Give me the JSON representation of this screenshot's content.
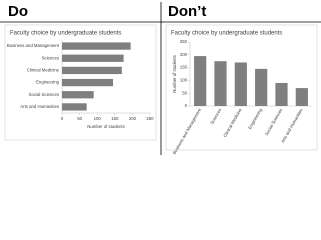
{
  "headings": {
    "do": "Do",
    "dont": "Don’t"
  },
  "chart_data": [
    {
      "type": "bar",
      "orientation": "horizontal",
      "title": "Faculty choice by undergraduate students",
      "categories": [
        "Business and Management",
        "Sciences",
        "Clinical Medicine",
        "Engineering",
        "Social Sciences",
        "Arts and Humanities"
      ],
      "values": [
        195,
        175,
        170,
        145,
        90,
        70
      ],
      "color": "#7f7f7f",
      "xlim": [
        0,
        250
      ],
      "xticks": [
        0,
        50,
        100,
        150,
        200,
        250
      ],
      "xlabel": "Number of students"
    },
    {
      "type": "bar",
      "orientation": "vertical",
      "title": "Faculty choice by undergraduate students",
      "categories": [
        "Business and Management",
        "Sciences",
        "Clinical Medicine",
        "Engineering",
        "Social Sciences",
        "Arts and Humanities"
      ],
      "values": [
        195,
        175,
        170,
        145,
        90,
        70
      ],
      "color": "#7f7f7f",
      "ylim": [
        0,
        250
      ],
      "yticks": [
        0,
        50,
        100,
        150,
        200,
        250
      ],
      "ylabel": "Number of students"
    }
  ]
}
